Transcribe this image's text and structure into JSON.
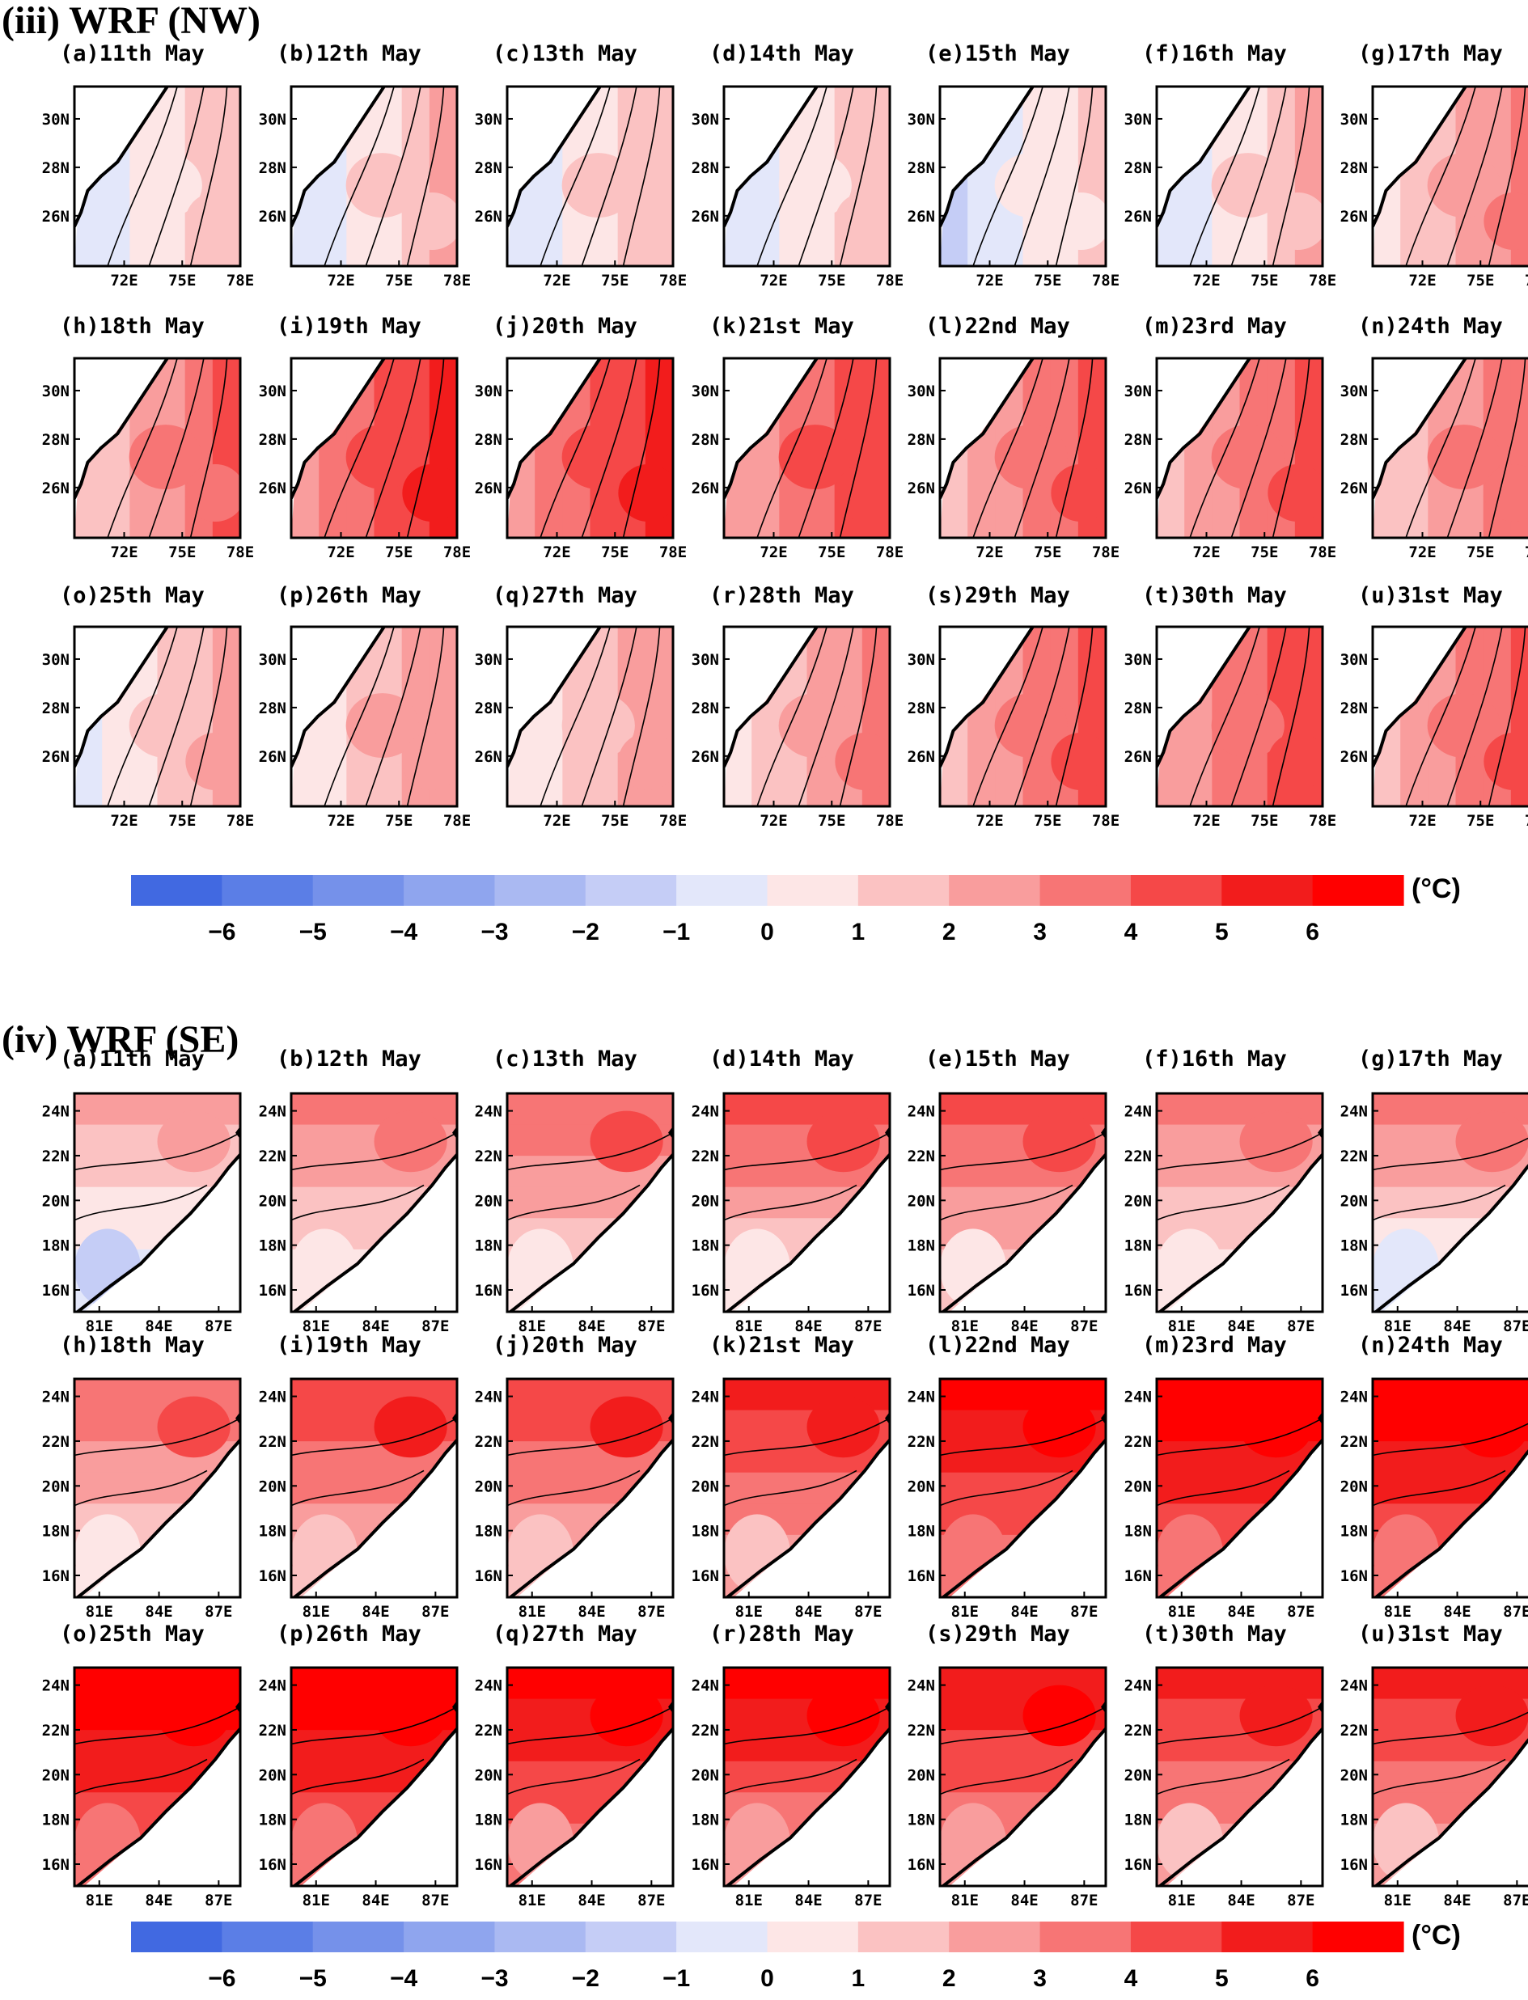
{
  "sections": [
    {
      "id": "nw",
      "title": "(iii) WRF (NW)",
      "lat_ticks": [
        "30N",
        "28N",
        "26N"
      ],
      "lon_ticks": [
        "72E",
        "75E",
        "78E"
      ],
      "region": "NW",
      "panels": [
        {
          "label": "(a)11th May",
          "level": 0.3
        },
        {
          "label": "(b)12th May",
          "level": 0.6
        },
        {
          "label": "(c)13th May",
          "level": 0.5
        },
        {
          "label": "(d)14th May",
          "level": 0.2
        },
        {
          "label": "(e)15th May",
          "level": -0.3
        },
        {
          "label": "(f)16th May",
          "level": 0.6
        },
        {
          "label": "(g)17th May",
          "level": 1.8
        },
        {
          "label": "(h)18th May",
          "level": 2.6
        },
        {
          "label": "(i)19th May",
          "level": 3.8
        },
        {
          "label": "(j)20th May",
          "level": 3.8
        },
        {
          "label": "(k)21st May",
          "level": 3.4
        },
        {
          "label": "(l)22nd May",
          "level": 3.0
        },
        {
          "label": "(m)23rd May",
          "level": 2.8
        },
        {
          "label": "(n)24th May",
          "level": 2.4
        },
        {
          "label": "(o)25th May",
          "level": 1.0
        },
        {
          "label": "(p)26th May",
          "level": 1.4
        },
        {
          "label": "(q)27th May",
          "level": 1.2
        },
        {
          "label": "(r)28th May",
          "level": 2.0
        },
        {
          "label": "(s)29th May",
          "level": 2.8
        },
        {
          "label": "(t)30th May",
          "level": 3.2
        },
        {
          "label": "(u)31st May",
          "level": 3.0
        }
      ]
    },
    {
      "id": "se",
      "title": "(iv) WRF (SE)",
      "lat_ticks": [
        "24N",
        "22N",
        "20N",
        "18N",
        "16N"
      ],
      "lon_ticks": [
        "81E",
        "84E",
        "87E"
      ],
      "region": "SE",
      "panels": [
        {
          "label": "(a)11th May",
          "level": 1.2
        },
        {
          "label": "(b)12th May",
          "level": 2.2
        },
        {
          "label": "(c)13th May",
          "level": 2.6
        },
        {
          "label": "(d)14th May",
          "level": 2.8
        },
        {
          "label": "(e)15th May",
          "level": 3.0
        },
        {
          "label": "(f)16th May",
          "level": 2.2
        },
        {
          "label": "(g)17th May",
          "level": 1.8
        },
        {
          "label": "(h)18th May",
          "level": 2.4
        },
        {
          "label": "(i)19th May",
          "level": 3.4
        },
        {
          "label": "(j)20th May",
          "level": 3.6
        },
        {
          "label": "(k)21st May",
          "level": 4.0
        },
        {
          "label": "(l)22nd May",
          "level": 5.2
        },
        {
          "label": "(m)23rd May",
          "level": 5.6
        },
        {
          "label": "(n)24th May",
          "level": 5.4
        },
        {
          "label": "(o)25th May",
          "level": 5.6
        },
        {
          "label": "(p)26th May",
          "level": 5.4
        },
        {
          "label": "(q)27th May",
          "level": 5.0
        },
        {
          "label": "(r)28th May",
          "level": 4.8
        },
        {
          "label": "(s)29th May",
          "level": 4.6
        },
        {
          "label": "(t)30th May",
          "level": 4.0
        },
        {
          "label": "(u)31st May",
          "level": 4.0
        }
      ]
    }
  ],
  "colorbar": {
    "unit": "(°C)",
    "tick_labels": [
      "−6",
      "−5",
      "−4",
      "−3",
      "−2",
      "−1",
      "0",
      "1",
      "2",
      "3",
      "4",
      "5",
      "6"
    ],
    "colors": [
      "#4169e1",
      "#5b7ee6",
      "#7591ea",
      "#8fa5ee",
      "#aab9f2",
      "#c5cdf6",
      "#e3e7fa",
      "#fde6e6",
      "#fbc2c2",
      "#f99d9d",
      "#f77575",
      "#f54848",
      "#f21c1c",
      "#ff0000"
    ]
  },
  "chart_data": [
    {
      "type": "heatmap",
      "title": "(iii) WRF (NW)",
      "description_units": "°C",
      "xlabel": "",
      "ylabel": "",
      "x_ticks": [
        "72E",
        "75E",
        "78E"
      ],
      "y_ticks": [
        "30N",
        "28N",
        "26N"
      ],
      "series": [
        {
          "name": "11th May",
          "approx_mean_anomaly": 0.3
        },
        {
          "name": "12th May",
          "approx_mean_anomaly": 0.6
        },
        {
          "name": "13th May",
          "approx_mean_anomaly": 0.5
        },
        {
          "name": "14th May",
          "approx_mean_anomaly": 0.2
        },
        {
          "name": "15th May",
          "approx_mean_anomaly": -0.3
        },
        {
          "name": "16th May",
          "approx_mean_anomaly": 0.6
        },
        {
          "name": "17th May",
          "approx_mean_anomaly": 1.8
        },
        {
          "name": "18th May",
          "approx_mean_anomaly": 2.6
        },
        {
          "name": "19th May",
          "approx_mean_anomaly": 3.8
        },
        {
          "name": "20th May",
          "approx_mean_anomaly": 3.8
        },
        {
          "name": "21st May",
          "approx_mean_anomaly": 3.4
        },
        {
          "name": "22nd May",
          "approx_mean_anomaly": 3.0
        },
        {
          "name": "23rd May",
          "approx_mean_anomaly": 2.8
        },
        {
          "name": "24th May",
          "approx_mean_anomaly": 2.4
        },
        {
          "name": "25th May",
          "approx_mean_anomaly": 1.0
        },
        {
          "name": "26th May",
          "approx_mean_anomaly": 1.4
        },
        {
          "name": "27th May",
          "approx_mean_anomaly": 1.2
        },
        {
          "name": "28th May",
          "approx_mean_anomaly": 2.0
        },
        {
          "name": "29th May",
          "approx_mean_anomaly": 2.8
        },
        {
          "name": "30th May",
          "approx_mean_anomaly": 3.2
        },
        {
          "name": "31st May",
          "approx_mean_anomaly": 3.0
        }
      ],
      "colorbar_range": [
        -6,
        6
      ]
    },
    {
      "type": "heatmap",
      "title": "(iv) WRF (SE)",
      "description_units": "°C",
      "xlabel": "",
      "ylabel": "",
      "x_ticks": [
        "81E",
        "84E",
        "87E"
      ],
      "y_ticks": [
        "24N",
        "22N",
        "20N",
        "18N",
        "16N"
      ],
      "series": [
        {
          "name": "11th May",
          "approx_mean_anomaly": 1.2
        },
        {
          "name": "12th May",
          "approx_mean_anomaly": 2.2
        },
        {
          "name": "13th May",
          "approx_mean_anomaly": 2.6
        },
        {
          "name": "14th May",
          "approx_mean_anomaly": 2.8
        },
        {
          "name": "15th May",
          "approx_mean_anomaly": 3.0
        },
        {
          "name": "16th May",
          "approx_mean_anomaly": 2.2
        },
        {
          "name": "17th May",
          "approx_mean_anomaly": 1.8
        },
        {
          "name": "18th May",
          "approx_mean_anomaly": 2.4
        },
        {
          "name": "19th May",
          "approx_mean_anomaly": 3.4
        },
        {
          "name": "20th May",
          "approx_mean_anomaly": 3.6
        },
        {
          "name": "21st May",
          "approx_mean_anomaly": 4.0
        },
        {
          "name": "22nd May",
          "approx_mean_anomaly": 5.2
        },
        {
          "name": "23rd May",
          "approx_mean_anomaly": 5.6
        },
        {
          "name": "24th May",
          "approx_mean_anomaly": 5.4
        },
        {
          "name": "25th May",
          "approx_mean_anomaly": 5.6
        },
        {
          "name": "26th May",
          "approx_mean_anomaly": 5.4
        },
        {
          "name": "27th May",
          "approx_mean_anomaly": 5.0
        },
        {
          "name": "28th May",
          "approx_mean_anomaly": 4.8
        },
        {
          "name": "29th May",
          "approx_mean_anomaly": 4.6
        },
        {
          "name": "30th May",
          "approx_mean_anomaly": 4.0
        },
        {
          "name": "31st May",
          "approx_mean_anomaly": 4.0
        }
      ],
      "colorbar_range": [
        -6,
        6
      ]
    }
  ]
}
